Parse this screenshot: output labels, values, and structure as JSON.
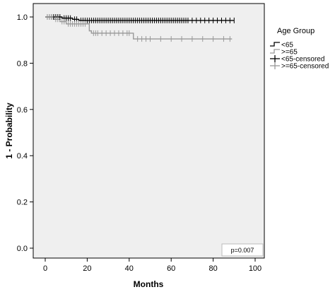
{
  "chart_data": {
    "type": "line",
    "ylabel": "1 - Probability",
    "xlabel": "Months",
    "xlim": [
      0,
      100
    ],
    "ylim": [
      0.0,
      1.0
    ],
    "x_ticks": [
      "0",
      "20",
      "40",
      "60",
      "80",
      "100"
    ],
    "y_ticks": [
      "0.0",
      "0.2",
      "0.4",
      "0.6",
      "0.8",
      "1.0"
    ],
    "grid": false,
    "legend_title": "Age Group",
    "legend_position": "right",
    "annotation": "p=0.007",
    "series": [
      {
        "name": "<65",
        "color": "#000000",
        "steps": [
          [
            0,
            1.0
          ],
          [
            8,
            0.995
          ],
          [
            13,
            0.99
          ],
          [
            16,
            0.985
          ],
          [
            90,
            0.985
          ]
        ],
        "censored_x": [
          1,
          2,
          3,
          4,
          5,
          6,
          7,
          9,
          10,
          11,
          12,
          14,
          15,
          17,
          18,
          19,
          20,
          21,
          22,
          23,
          24,
          25,
          26,
          27,
          28,
          29,
          30,
          31,
          32,
          33,
          34,
          35,
          36,
          37,
          38,
          39,
          40,
          41,
          42,
          43,
          44,
          45,
          46,
          47,
          48,
          49,
          50,
          51,
          52,
          53,
          54,
          55,
          56,
          57,
          58,
          59,
          60,
          61,
          62,
          63,
          64,
          65,
          66,
          67,
          68,
          70,
          72,
          74,
          76,
          78,
          80,
          82,
          84,
          86,
          88,
          90
        ]
      },
      {
        "name": ">=65",
        "color": "#999999",
        "steps": [
          [
            0,
            1.0
          ],
          [
            4,
            0.99
          ],
          [
            7,
            0.98
          ],
          [
            10,
            0.97
          ],
          [
            21,
            0.94
          ],
          [
            22,
            0.93
          ],
          [
            42,
            0.905
          ],
          [
            89,
            0.905
          ]
        ],
        "censored_x": [
          1,
          2,
          3,
          5,
          6,
          8,
          9,
          11,
          12,
          13,
          14,
          15,
          16,
          17,
          18,
          19,
          23,
          24,
          25,
          27,
          29,
          31,
          33,
          35,
          37,
          39,
          40,
          44,
          46,
          48,
          50,
          55,
          60,
          65,
          70,
          75,
          80,
          85,
          88
        ]
      }
    ],
    "legend_entries": [
      {
        "label": "<65",
        "kind": "line",
        "color": "#000000"
      },
      {
        "label": ">=65",
        "kind": "line",
        "color": "#999999"
      },
      {
        "label": "<65-censored",
        "kind": "censor",
        "color": "#000000"
      },
      {
        "label": ">=65-censored",
        "kind": "censor",
        "color": "#999999"
      }
    ]
  }
}
